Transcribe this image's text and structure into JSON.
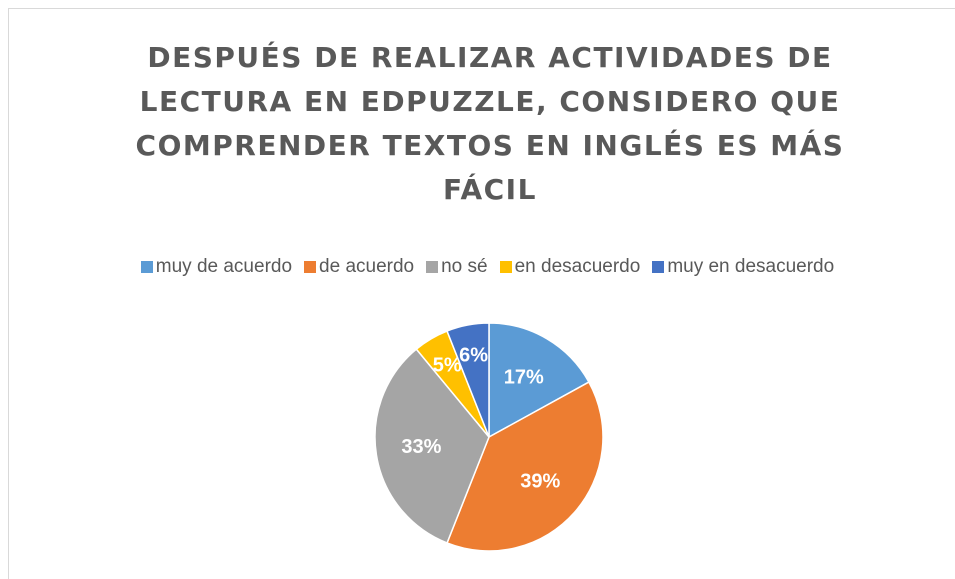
{
  "chart_data": {
    "type": "pie",
    "title": "DESPUÉS DE REALIZAR ACTIVIDADES DE LECTURA EN EDPUZZLE, CONSIDERO QUE COMPRENDER TEXTOS EN INGLÉS ES MÁS FÁCIL",
    "categories": [
      "muy de acuerdo",
      "de acuerdo",
      "no sé",
      "en desacuerdo",
      "muy en desacuerdo"
    ],
    "values": [
      17,
      39,
      33,
      5,
      6
    ],
    "value_labels": [
      "17%",
      "39%",
      "33%",
      "5%",
      "6%"
    ],
    "colors": [
      "#5b9bd5",
      "#ed7d31",
      "#a5a5a5",
      "#ffc000",
      "#4472c4"
    ],
    "legend": "top"
  }
}
